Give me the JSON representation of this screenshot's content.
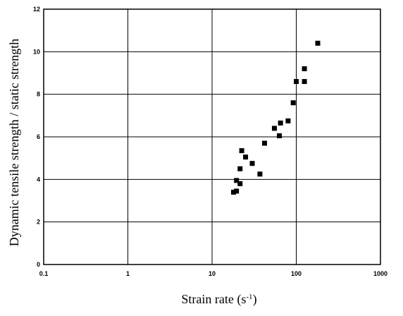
{
  "chart_data": {
    "type": "scatter",
    "xlabel_main": "Strain rate (s",
    "xlabel_sup": "-1",
    "xlabel_end": ")",
    "ylabel": "Dynamic tensile strength / static strength",
    "xscale": "log",
    "xlim": [
      0.1,
      1000
    ],
    "ylim": [
      0,
      12
    ],
    "grid": true,
    "x_ticks": [
      0.1,
      1,
      10,
      100,
      1000
    ],
    "x_tick_labels": [
      "0.1",
      "1",
      "10",
      "100",
      "1000"
    ],
    "y_ticks": [
      0,
      2,
      4,
      6,
      8,
      10,
      12
    ],
    "y_tick_labels": [
      "0",
      "2",
      "4",
      "6",
      "8",
      "10",
      "12"
    ],
    "marker": "square",
    "marker_color": "#000000",
    "points": [
      {
        "x": 18,
        "y": 3.4
      },
      {
        "x": 19.5,
        "y": 3.45
      },
      {
        "x": 19.5,
        "y": 3.95
      },
      {
        "x": 21.5,
        "y": 3.8
      },
      {
        "x": 21.5,
        "y": 4.5
      },
      {
        "x": 22.5,
        "y": 5.35
      },
      {
        "x": 25,
        "y": 5.05
      },
      {
        "x": 30,
        "y": 4.75
      },
      {
        "x": 37,
        "y": 4.25
      },
      {
        "x": 42,
        "y": 5.7
      },
      {
        "x": 55,
        "y": 6.4
      },
      {
        "x": 63,
        "y": 6.05
      },
      {
        "x": 65,
        "y": 6.65
      },
      {
        "x": 80,
        "y": 6.75
      },
      {
        "x": 92,
        "y": 7.6
      },
      {
        "x": 100,
        "y": 8.6
      },
      {
        "x": 125,
        "y": 8.6
      },
      {
        "x": 125,
        "y": 9.2
      },
      {
        "x": 180,
        "y": 10.4
      }
    ]
  }
}
